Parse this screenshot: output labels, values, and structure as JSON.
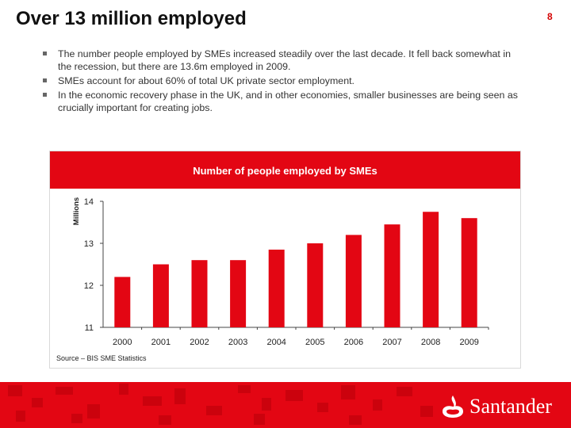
{
  "slide": {
    "title": "Over 13 million employed",
    "page_number": "8"
  },
  "bullets": [
    "The number people employed by SMEs increased steadily  over the last decade. It fell back somewhat in the recession, but there are 13.6m employed in 2009.",
    "SMEs account for about 60% of total UK private sector employment.",
    "In the economic recovery phase in the UK, and in other economies, smaller businesses are being seen as crucially important for creating jobs."
  ],
  "chart_data": {
    "type": "bar",
    "title": "Number of people employed by SMEs",
    "xlabel": "",
    "ylabel": "Millions",
    "categories": [
      "2000",
      "2001",
      "2002",
      "2003",
      "2004",
      "2005",
      "2006",
      "2007",
      "2008",
      "2009"
    ],
    "values": [
      12.2,
      12.5,
      12.6,
      12.6,
      12.85,
      13.0,
      13.2,
      13.45,
      13.75,
      13.6
    ],
    "ylim": [
      11,
      14
    ],
    "yticks": [
      11,
      12,
      13,
      14
    ],
    "grid": false,
    "legend": "none",
    "bar_color": "#e30613"
  },
  "source": "Source – BIS SME Statistics",
  "brand": {
    "name": "Santander",
    "color": "#e30613",
    "logo_icon": "santander-flame-icon"
  }
}
